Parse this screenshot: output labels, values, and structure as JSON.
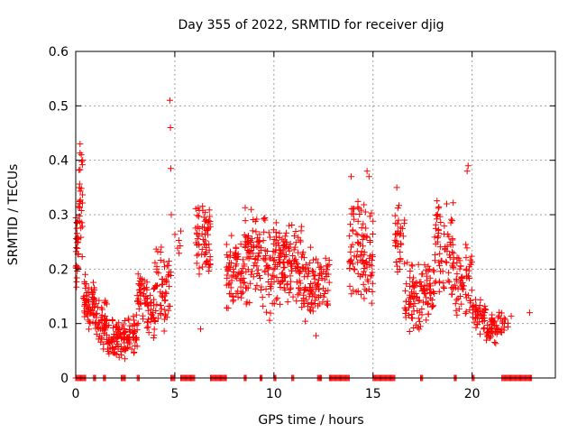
{
  "chart_data": {
    "type": "scatter",
    "title": "Day 355 of 2022, SRMTID for receiver djig",
    "xlabel": "GPS time / hours",
    "ylabel": "SRMTID / TECUs",
    "xlim": [
      0,
      24.2
    ],
    "ylim": [
      0,
      0.6
    ],
    "x_ticks": [
      0,
      5,
      10,
      15,
      20
    ],
    "x_tick_labels": [
      "0",
      "5",
      "10",
      "15",
      "20"
    ],
    "y_ticks": [
      0,
      0.1,
      0.2,
      0.3,
      0.4,
      0.5,
      0.6
    ],
    "y_tick_labels": [
      "0",
      "0.1",
      "0.2",
      "0.3",
      "0.4",
      "0.5",
      "0.6"
    ],
    "grid": true,
    "marker": "+",
    "color": "#ff0000",
    "series": [
      {
        "name": "SRMTID",
        "segments": [
          {
            "x0": 0.0,
            "x1": 0.15,
            "lo": 0.15,
            "hi": 0.33,
            "n": 30
          },
          {
            "x0": 0.15,
            "x1": 0.35,
            "lo": 0.22,
            "hi": 0.43,
            "n": 25
          },
          {
            "x0": 0.35,
            "x1": 1.0,
            "lo": 0.08,
            "hi": 0.2,
            "n": 60
          },
          {
            "x0": 1.0,
            "x1": 1.6,
            "lo": 0.05,
            "hi": 0.15,
            "n": 55
          },
          {
            "x0": 1.6,
            "x1": 2.6,
            "lo": 0.03,
            "hi": 0.12,
            "n": 80
          },
          {
            "x0": 2.6,
            "x1": 3.1,
            "lo": 0.04,
            "hi": 0.12,
            "n": 40
          },
          {
            "x0": 3.1,
            "x1": 3.6,
            "lo": 0.1,
            "hi": 0.2,
            "n": 40
          },
          {
            "x0": 3.6,
            "x1": 4.0,
            "lo": 0.06,
            "hi": 0.17,
            "n": 30
          },
          {
            "x0": 4.0,
            "x1": 4.8,
            "lo": 0.08,
            "hi": 0.25,
            "n": 60
          },
          {
            "x0": 5.0,
            "x1": 5.3,
            "lo": 0.22,
            "hi": 0.3,
            "n": 6
          },
          {
            "x0": 6.0,
            "x1": 6.8,
            "lo": 0.18,
            "hi": 0.34,
            "n": 70
          },
          {
            "x0": 7.6,
            "x1": 8.5,
            "lo": 0.12,
            "hi": 0.27,
            "n": 70
          },
          {
            "x0": 8.5,
            "x1": 9.6,
            "lo": 0.12,
            "hi": 0.33,
            "n": 90
          },
          {
            "x0": 9.6,
            "x1": 10.5,
            "lo": 0.1,
            "hi": 0.3,
            "n": 80
          },
          {
            "x0": 10.5,
            "x1": 11.4,
            "lo": 0.12,
            "hi": 0.3,
            "n": 80
          },
          {
            "x0": 11.4,
            "x1": 12.2,
            "lo": 0.07,
            "hi": 0.25,
            "n": 60
          },
          {
            "x0": 12.2,
            "x1": 12.8,
            "lo": 0.12,
            "hi": 0.24,
            "n": 40
          },
          {
            "x0": 13.8,
            "x1": 14.5,
            "lo": 0.11,
            "hi": 0.36,
            "n": 60
          },
          {
            "x0": 14.5,
            "x1": 15.0,
            "lo": 0.1,
            "hi": 0.33,
            "n": 45
          },
          {
            "x0": 16.1,
            "x1": 16.6,
            "lo": 0.18,
            "hi": 0.34,
            "n": 35
          },
          {
            "x0": 16.6,
            "x1": 17.4,
            "lo": 0.07,
            "hi": 0.22,
            "n": 60
          },
          {
            "x0": 17.4,
            "x1": 18.1,
            "lo": 0.1,
            "hi": 0.21,
            "n": 50
          },
          {
            "x0": 18.1,
            "x1": 19.1,
            "lo": 0.14,
            "hi": 0.35,
            "n": 75
          },
          {
            "x0": 19.1,
            "x1": 20.0,
            "lo": 0.1,
            "hi": 0.25,
            "n": 60
          },
          {
            "x0": 20.0,
            "x1": 20.7,
            "lo": 0.08,
            "hi": 0.15,
            "n": 45
          },
          {
            "x0": 20.7,
            "x1": 21.5,
            "lo": 0.06,
            "hi": 0.13,
            "n": 50
          },
          {
            "x0": 21.5,
            "x1": 22.0,
            "lo": 0.08,
            "hi": 0.12,
            "n": 10
          }
        ],
        "outliers": [
          {
            "x": 0.22,
            "y": 0.43
          },
          {
            "x": 0.28,
            "y": 0.41
          },
          {
            "x": 0.35,
            "y": 0.4
          },
          {
            "x": 4.75,
            "y": 0.51
          },
          {
            "x": 4.78,
            "y": 0.46
          },
          {
            "x": 4.8,
            "y": 0.385
          },
          {
            "x": 4.82,
            "y": 0.3
          },
          {
            "x": 6.3,
            "y": 0.09
          },
          {
            "x": 13.9,
            "y": 0.37
          },
          {
            "x": 14.7,
            "y": 0.38
          },
          {
            "x": 14.8,
            "y": 0.37
          },
          {
            "x": 19.8,
            "y": 0.39
          },
          {
            "x": 19.75,
            "y": 0.38
          },
          {
            "x": 16.2,
            "y": 0.35
          },
          {
            "x": 21.0,
            "y": 0.11
          },
          {
            "x": 22.9,
            "y": 0.12
          }
        ],
        "zero_runs": [
          [
            0.0,
            0.5
          ],
          [
            0.9,
            1.0
          ],
          [
            1.4,
            1.5
          ],
          [
            2.3,
            2.5
          ],
          [
            3.1,
            3.2
          ],
          [
            4.8,
            5.0
          ],
          [
            5.3,
            6.0
          ],
          [
            6.8,
            7.6
          ],
          [
            8.5,
            8.6
          ],
          [
            9.3,
            9.4
          ],
          [
            10.0,
            10.1
          ],
          [
            10.9,
            11.0
          ],
          [
            12.2,
            12.4
          ],
          [
            12.8,
            13.8
          ],
          [
            15.0,
            16.1
          ],
          [
            17.4,
            17.5
          ],
          [
            19.1,
            19.2
          ],
          [
            20.0,
            20.1
          ],
          [
            21.5,
            23.0
          ]
        ]
      }
    ]
  }
}
